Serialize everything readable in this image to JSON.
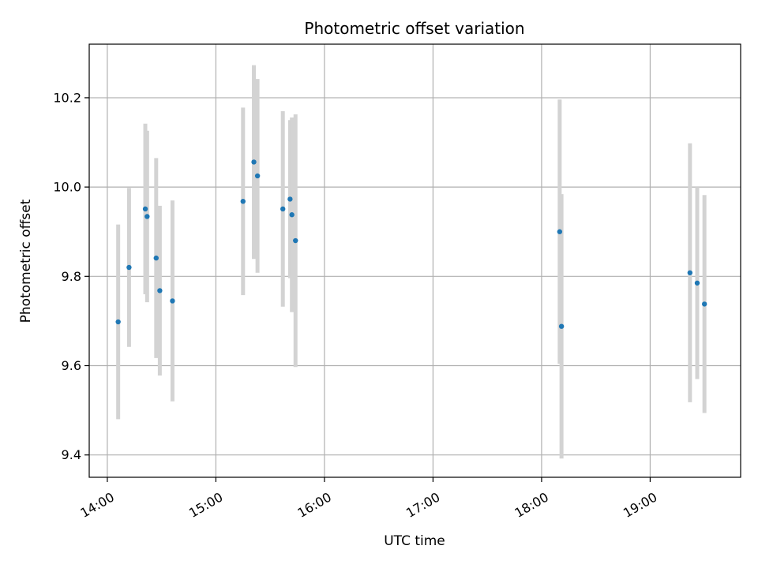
{
  "chart_data": {
    "type": "scatter",
    "title": "Photometric offset variation",
    "xlabel": "UTC time",
    "ylabel": "Photometric offset",
    "grid": true,
    "xlim": [
      "13:50",
      "19:50"
    ],
    "ylim": [
      9.35,
      10.32
    ],
    "x_ticks": [
      "14:00",
      "15:00",
      "16:00",
      "17:00",
      "18:00",
      "19:00"
    ],
    "y_ticks": [
      9.4,
      9.6,
      9.8,
      10.0,
      10.2
    ],
    "y_tick_labels": [
      "9.4",
      "9.6",
      "9.8",
      "10.0",
      "10.2"
    ],
    "marker_color": "#1f77b4",
    "errorbar_color": "#d3d3d3",
    "points": [
      {
        "x": "14:06",
        "y": 9.698,
        "yerr": 0.218
      },
      {
        "x": "14:12",
        "y": 9.82,
        "yerr": 0.178
      },
      {
        "x": "14:21",
        "y": 9.951,
        "yerr": 0.191
      },
      {
        "x": "14:22",
        "y": 9.934,
        "yerr": 0.192
      },
      {
        "x": "14:27",
        "y": 9.841,
        "yerr": 0.224
      },
      {
        "x": "14:29",
        "y": 9.768,
        "yerr": 0.19
      },
      {
        "x": "14:36",
        "y": 9.745,
        "yerr": 0.225
      },
      {
        "x": "15:15",
        "y": 9.968,
        "yerr": 0.21
      },
      {
        "x": "15:21",
        "y": 10.056,
        "yerr": 0.217
      },
      {
        "x": "15:23",
        "y": 10.025,
        "yerr": 0.217
      },
      {
        "x": "15:37",
        "y": 9.951,
        "yerr": 0.219
      },
      {
        "x": "15:41",
        "y": 9.973,
        "yerr": 0.177
      },
      {
        "x": "15:42",
        "y": 9.938,
        "yerr": 0.218
      },
      {
        "x": "15:44",
        "y": 9.88,
        "yerr": 0.283
      },
      {
        "x": "18:10",
        "y": 9.9,
        "yerr": 0.296
      },
      {
        "x": "18:11",
        "y": 9.688,
        "yerr": 0.296
      },
      {
        "x": "19:22",
        "y": 9.808,
        "yerr": 0.29
      },
      {
        "x": "19:26",
        "y": 9.785,
        "yerr": 0.215
      },
      {
        "x": "19:30",
        "y": 9.738,
        "yerr": 0.244
      }
    ]
  }
}
